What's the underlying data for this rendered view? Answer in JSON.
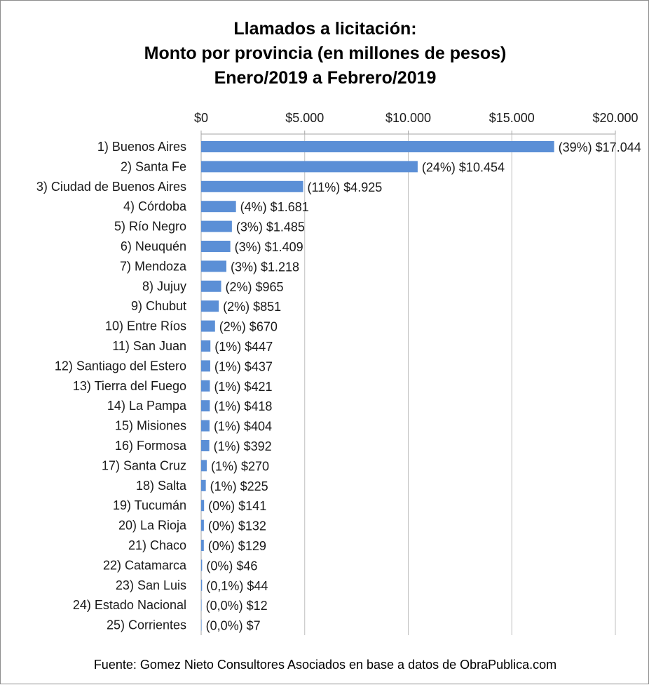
{
  "chart_data": {
    "type": "bar",
    "orientation": "horizontal",
    "title": [
      "Llamados a licitación:",
      "Monto por provincia (en millones de pesos)",
      "Enero/2019 a Febrero/2019"
    ],
    "xlim": [
      0,
      20000
    ],
    "ticks": [
      0,
      5000,
      10000,
      15000,
      20000
    ],
    "tick_labels": [
      "$0",
      "$5.000",
      "$10.000",
      "$15.000",
      "$20.000"
    ],
    "grid": true,
    "bar_color": "#5b8fd6",
    "categories": [
      "1) Buenos Aires",
      "2) Santa Fe",
      "3) Ciudad de Buenos Aires",
      "4) Córdoba",
      "5) Río Negro",
      "6) Neuquén",
      "7) Mendoza",
      "8) Jujuy",
      "9) Chubut",
      "10) Entre Ríos",
      "11) San Juan",
      "12) Santiago del Estero",
      "13) Tierra del Fuego",
      "14) La Pampa",
      "15) Misiones",
      "16) Formosa",
      "17) Santa Cruz",
      "18) Salta",
      "19) Tucumán",
      "20) La Rioja",
      "21) Chaco",
      "22) Catamarca",
      "23) San Luis",
      "24) Estado Nacional",
      "25) Corrientes"
    ],
    "values": [
      17044,
      10454,
      4925,
      1681,
      1485,
      1409,
      1218,
      965,
      851,
      670,
      447,
      437,
      421,
      418,
      404,
      392,
      270,
      225,
      141,
      132,
      129,
      46,
      44,
      12,
      7
    ],
    "data_labels": [
      "(39%) $17.044",
      "(24%) $10.454",
      "(11%) $4.925",
      "(4%) $1.681",
      "(3%) $1.485",
      "(3%) $1.409",
      "(3%) $1.218",
      "(2%) $965",
      "(2%) $851",
      "(2%) $670",
      "(1%) $447",
      "(1%) $437",
      "(1%) $421",
      "(1%) $418",
      "(1%) $404",
      "(1%) $392",
      "(1%) $270",
      "(1%) $225",
      "(0%) $141",
      "(0%) $132",
      "(0%) $129",
      "(0%) $46",
      "(0,1%) $44",
      "(0,0%) $12",
      "(0,0%) $7"
    ],
    "source": "Fuente: Gomez Nieto Consultores Asociados en base a datos de ObraPublica.com"
  }
}
